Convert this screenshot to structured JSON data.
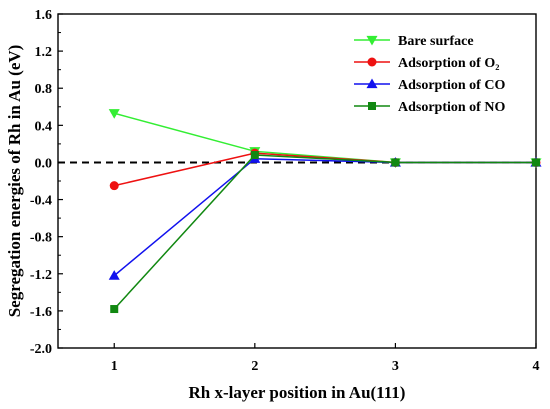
{
  "chart_data": {
    "type": "line",
    "xlabel": "Rh x-layer position in Au(111)",
    "ylabel": "Segregation energies of Rh in Au (eV)",
    "xlim": [
      0.6,
      4
    ],
    "ylim": [
      -2.0,
      1.6
    ],
    "x_ticks": [
      "1",
      "2",
      "3",
      "4"
    ],
    "y_ticks": [
      "1.6",
      "1.2",
      "0.8",
      "0.4",
      "0.0",
      "-0.4",
      "-0.8",
      "-1.2",
      "-1.6",
      "-2.0"
    ],
    "reference_line": {
      "y": 0.0,
      "style": "dashed"
    },
    "legend_position": "top-right",
    "series": [
      {
        "name": "Bare surface",
        "marker": "triangle-down",
        "color": "#33ee33",
        "x": [
          1,
          2,
          3,
          4
        ],
        "y": [
          0.53,
          0.12,
          0.0,
          0.0
        ]
      },
      {
        "name": "Adsorption of O₂",
        "marker": "circle",
        "color": "#ee1111",
        "x": [
          1,
          2,
          3,
          4
        ],
        "y": [
          -0.25,
          0.1,
          0.0,
          0.0
        ]
      },
      {
        "name": "Adsorption of CO",
        "marker": "triangle-up",
        "color": "#1111ee",
        "x": [
          1,
          2,
          3,
          4
        ],
        "y": [
          -1.22,
          0.04,
          0.0,
          0.0
        ]
      },
      {
        "name": "Adsorption of NO",
        "marker": "square",
        "color": "#118811",
        "x": [
          1,
          2,
          3,
          4
        ],
        "y": [
          -1.58,
          0.08,
          0.0,
          0.0
        ]
      }
    ]
  }
}
